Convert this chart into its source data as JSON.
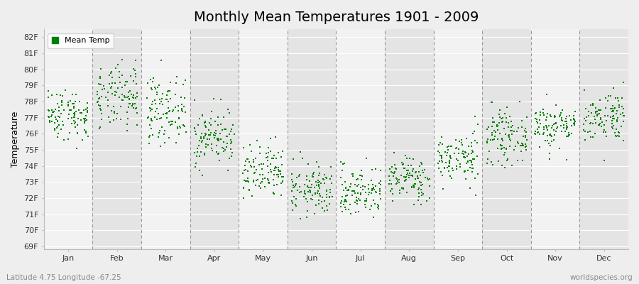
{
  "title": "Monthly Mean Temperatures 1901 - 2009",
  "ylabel": "Temperature",
  "xlabel_bottom_left": "Latitude 4.75 Longitude -67.25",
  "xlabel_bottom_right": "worldspecies.org",
  "legend_label": "Mean Temp",
  "marker_color": "#008000",
  "marker_size": 3,
  "ylim_min": 69,
  "ylim_max": 82.5,
  "yticks": [
    69,
    70,
    71,
    72,
    73,
    74,
    75,
    76,
    77,
    78,
    79,
    80,
    81,
    82
  ],
  "ytick_labels": [
    "69F",
    "70F",
    "71F",
    "72F",
    "73F",
    "74F",
    "75F",
    "76F",
    "77F",
    "78F",
    "79F",
    "80F",
    "81F",
    "82F"
  ],
  "months": [
    "Jan",
    "Feb",
    "Mar",
    "Apr",
    "May",
    "Jun",
    "Jul",
    "Aug",
    "Sep",
    "Oct",
    "Nov",
    "Dec"
  ],
  "background_color": "#eeeeee",
  "band_color_light": "#f2f2f2",
  "band_color_dark": "#e4e4e4",
  "grid_color": "#ffffff",
  "dashed_line_color": "#999999",
  "title_fontsize": 14,
  "axis_label_fontsize": 9,
  "tick_fontsize": 8,
  "seed": 42,
  "n_years": 109,
  "monthly_means": [
    77.2,
    78.2,
    77.5,
    75.8,
    73.5,
    72.5,
    72.4,
    73.2,
    74.5,
    75.8,
    76.5,
    77.1
  ],
  "monthly_stds": [
    0.8,
    1.0,
    1.0,
    0.9,
    0.9,
    0.8,
    0.8,
    0.7,
    0.8,
    0.8,
    0.7,
    0.8
  ],
  "figwidth": 9.0,
  "figheight": 4.0,
  "dpi": 100
}
